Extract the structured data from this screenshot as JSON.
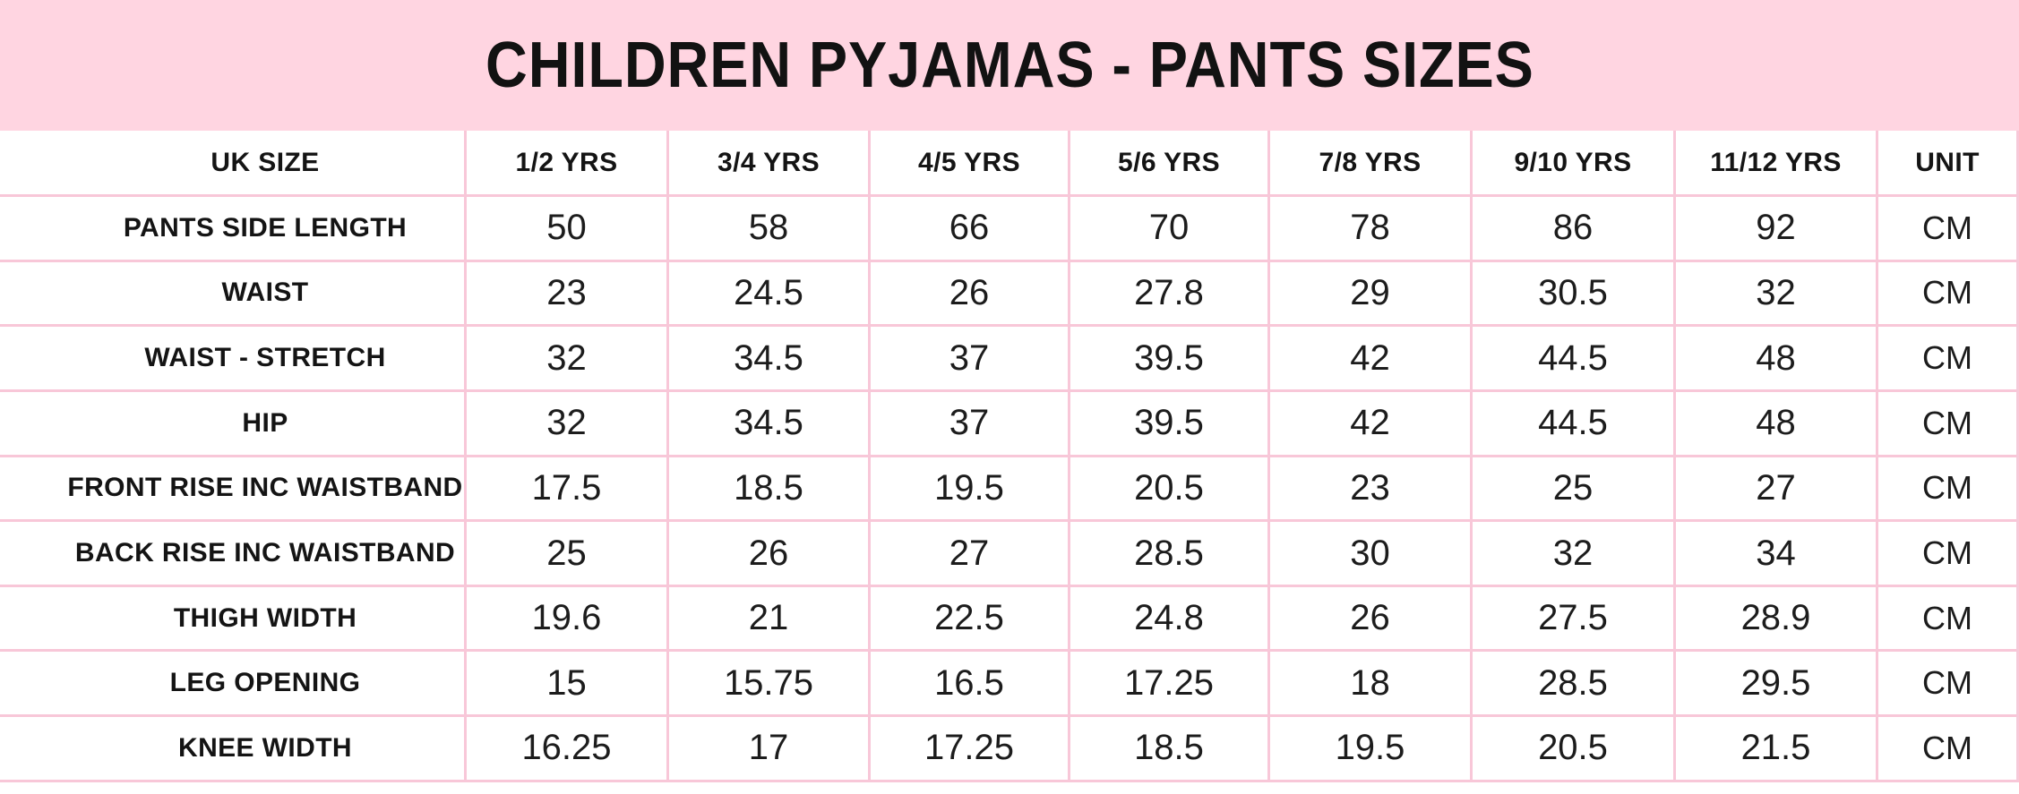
{
  "title": "CHILDREN PYJAMAS - PANTS SIZES",
  "colors": {
    "banner_pink": "#ffd5e1",
    "grid_line_pink": "#f8c7d8",
    "text": "#141414",
    "cell_background": "#ffffff"
  },
  "chart_data": {
    "type": "table",
    "title": "CHILDREN PYJAMAS - PANTS SIZES",
    "columns": [
      "UK SIZE",
      "1/2 YRS",
      "3/4 YRS",
      "4/5 YRS",
      "5/6 YRS",
      "7/8 YRS",
      "9/10 YRS",
      "11/12 YRS",
      "UNIT"
    ],
    "rows": [
      {
        "label": "PANTS SIDE LENGTH",
        "values": [
          "50",
          "58",
          "66",
          "70",
          "78",
          "86",
          "92"
        ],
        "unit": "CM"
      },
      {
        "label": "WAIST",
        "values": [
          "23",
          "24.5",
          "26",
          "27.8",
          "29",
          "30.5",
          "32"
        ],
        "unit": "CM"
      },
      {
        "label": "WAIST - STRETCH",
        "values": [
          "32",
          "34.5",
          "37",
          "39.5",
          "42",
          "44.5",
          "48"
        ],
        "unit": "CM"
      },
      {
        "label": "HIP",
        "values": [
          "32",
          "34.5",
          "37",
          "39.5",
          "42",
          "44.5",
          "48"
        ],
        "unit": "CM"
      },
      {
        "label": "FRONT RISE INC WAISTBAND",
        "values": [
          "17.5",
          "18.5",
          "19.5",
          "20.5",
          "23",
          "25",
          "27"
        ],
        "unit": "CM"
      },
      {
        "label": "BACK RISE INC WAISTBAND",
        "values": [
          "25",
          "26",
          "27",
          "28.5",
          "30",
          "32",
          "34"
        ],
        "unit": "CM"
      },
      {
        "label": "THIGH WIDTH",
        "values": [
          "19.6",
          "21",
          "22.5",
          "24.8",
          "26",
          "27.5",
          "28.9"
        ],
        "unit": "CM"
      },
      {
        "label": "LEG OPENING",
        "values": [
          "15",
          "15.75",
          "16.5",
          "17.25",
          "18",
          "28.5",
          "29.5"
        ],
        "unit": "CM"
      },
      {
        "label": "KNEE WIDTH",
        "values": [
          "16.25",
          "17",
          "17.25",
          "18.5",
          "19.5",
          "20.5",
          "21.5"
        ],
        "unit": "CM"
      }
    ]
  }
}
